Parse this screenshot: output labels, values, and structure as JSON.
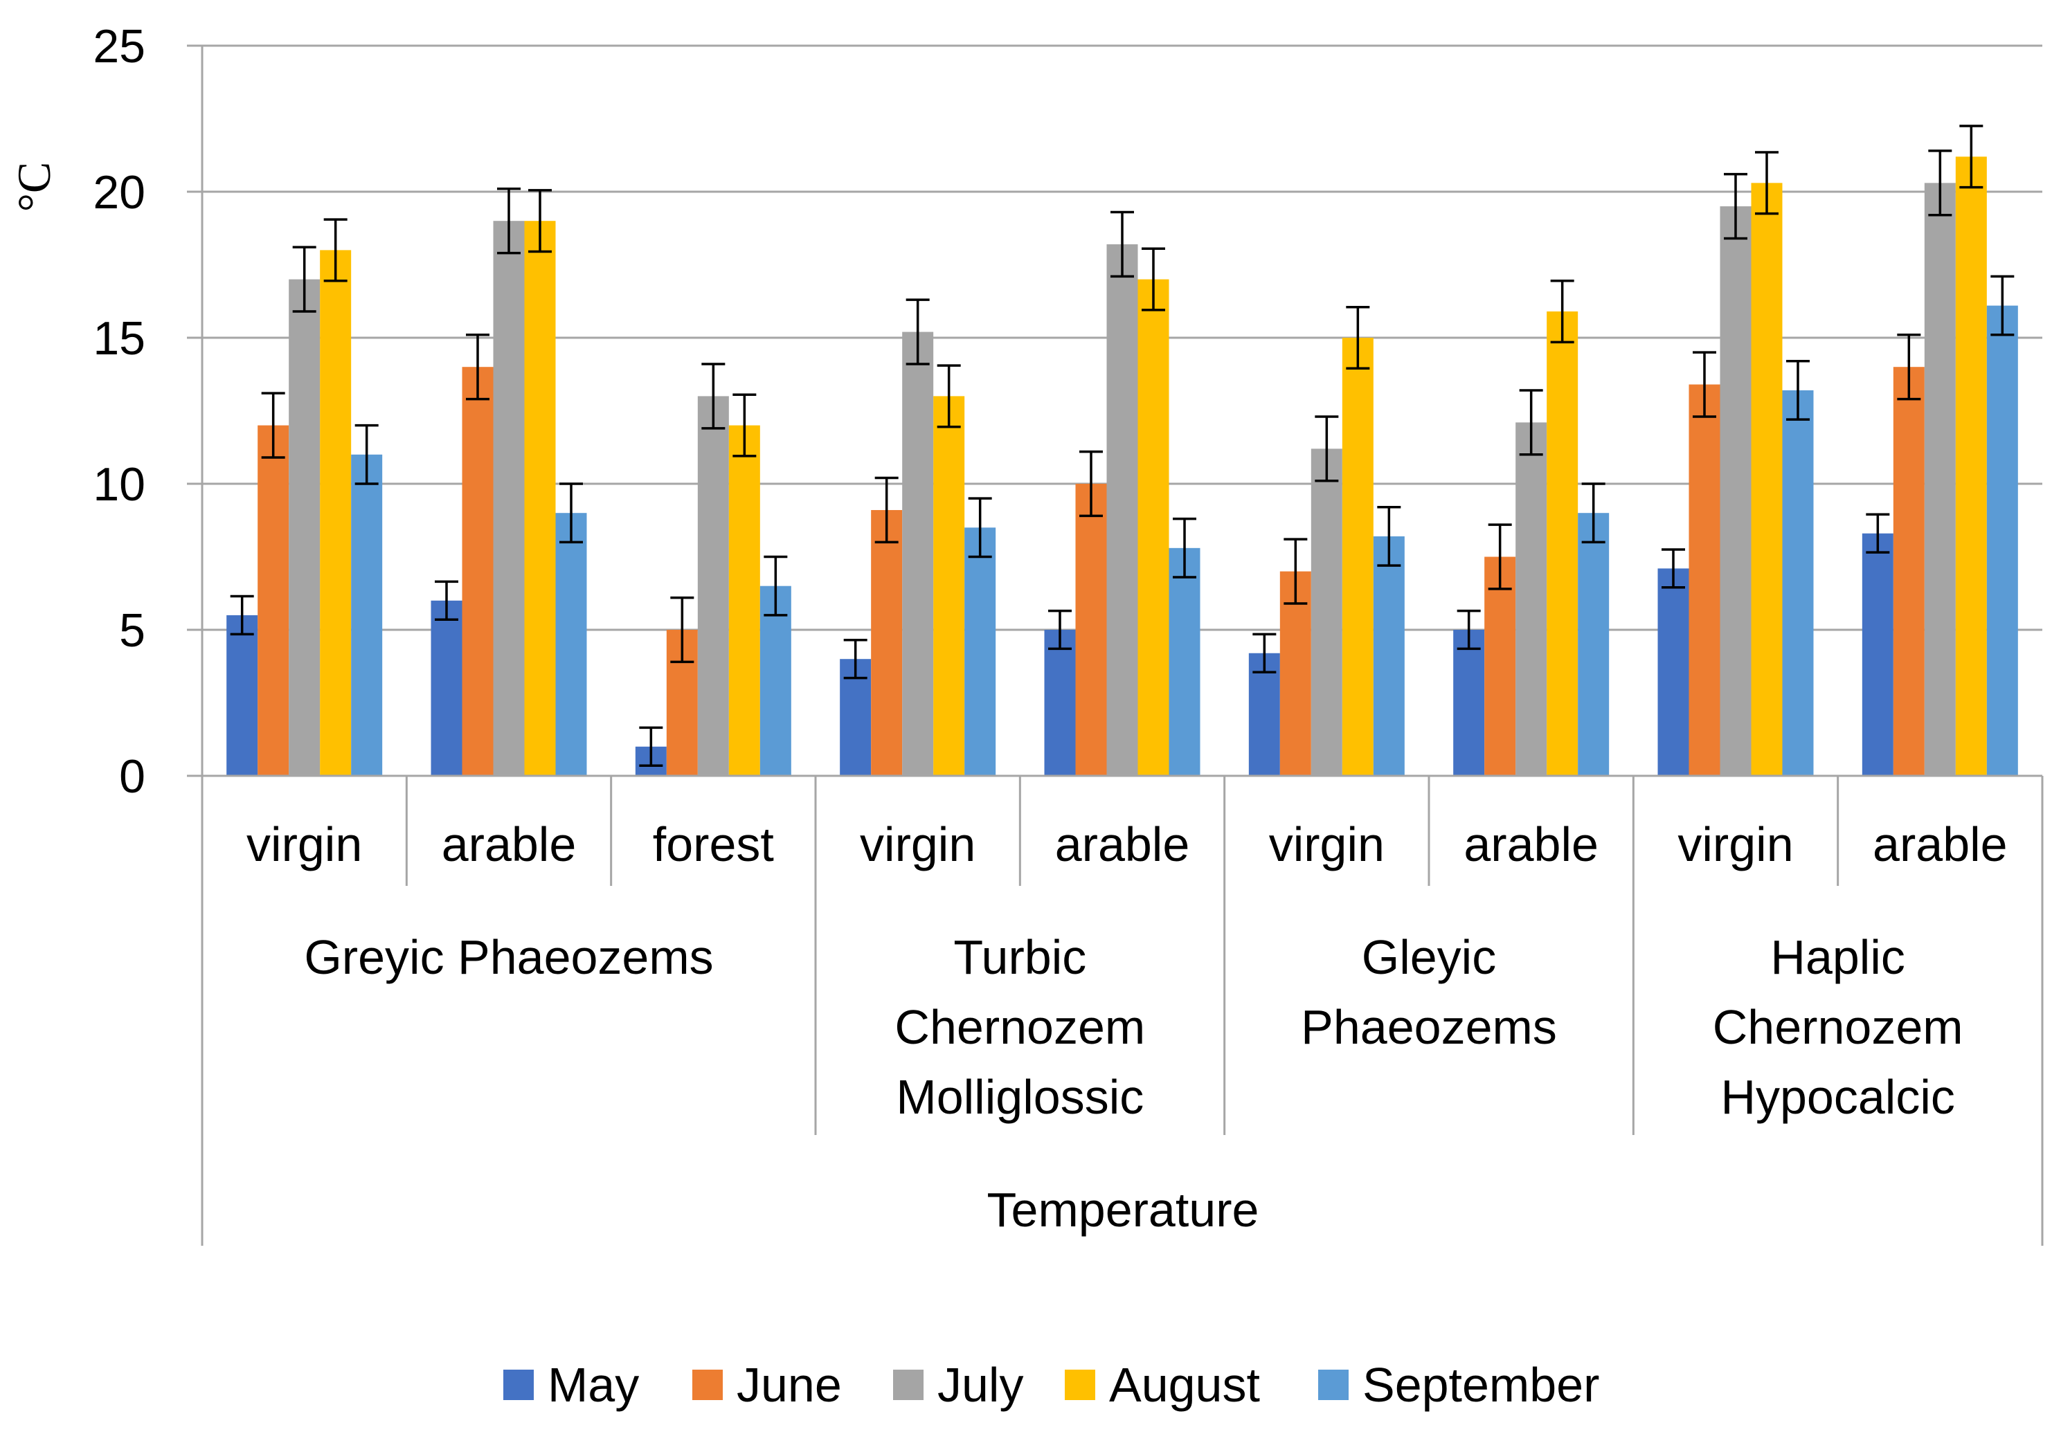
{
  "chart_data": {
    "type": "bar",
    "title": "",
    "ylabel": "°C",
    "xlabel": "Temperature",
    "ylim": [
      0,
      25
    ],
    "yticks": [
      0,
      5,
      10,
      15,
      20,
      25
    ],
    "grid": true,
    "legend_position": "bottom-center",
    "soil_groups": [
      {
        "label_lines": [
          "Greyic Phaeozems"
        ],
        "categories": [
          "virgin",
          "arable",
          "forest"
        ]
      },
      {
        "label_lines": [
          "Turbic",
          "Chernozem",
          "Molliglossic"
        ],
        "categories": [
          "virgin",
          "arable"
        ]
      },
      {
        "label_lines": [
          "Gleyic",
          "Phaeozems"
        ],
        "categories": [
          "virgin",
          "arable"
        ]
      },
      {
        "label_lines": [
          "Haplic",
          "Chernozem",
          "Hypocalcic"
        ],
        "categories": [
          "virgin",
          "arable"
        ]
      }
    ],
    "categories": [
      "virgin",
      "arable",
      "forest",
      "virgin",
      "arable",
      "virgin",
      "arable",
      "virgin",
      "arable"
    ],
    "series": [
      {
        "name": "May",
        "color": "#4472C4",
        "values": [
          5.5,
          6.0,
          1.0,
          4.0,
          5.0,
          4.2,
          5.0,
          7.1,
          8.3
        ],
        "error": [
          0.65,
          0.65,
          0.65,
          0.65,
          0.65,
          0.65,
          0.65,
          0.65,
          0.65
        ]
      },
      {
        "name": "June",
        "color": "#ED7D31",
        "values": [
          12.0,
          14.0,
          5.0,
          9.1,
          10.0,
          7.0,
          7.5,
          13.4,
          14.0
        ],
        "error": [
          1.1,
          1.1,
          1.1,
          1.1,
          1.1,
          1.1,
          1.1,
          1.1,
          1.1
        ]
      },
      {
        "name": "July",
        "color": "#A5A5A5",
        "values": [
          17.0,
          19.0,
          13.0,
          15.2,
          18.2,
          11.2,
          12.1,
          19.5,
          20.3
        ],
        "error": [
          1.1,
          1.1,
          1.1,
          1.1,
          1.1,
          1.1,
          1.1,
          1.1,
          1.1
        ]
      },
      {
        "name": "August",
        "color": "#FFC000",
        "values": [
          18.0,
          19.0,
          12.0,
          13.0,
          17.0,
          15.0,
          15.9,
          20.3,
          21.2
        ],
        "error": [
          1.05,
          1.05,
          1.05,
          1.05,
          1.05,
          1.05,
          1.05,
          1.05,
          1.05
        ]
      },
      {
        "name": "September",
        "color": "#5B9BD5",
        "values": [
          11.0,
          9.0,
          6.5,
          8.5,
          7.8,
          8.2,
          9.0,
          13.2,
          16.1
        ],
        "error": [
          1.0,
          1.0,
          1.0,
          1.0,
          1.0,
          1.0,
          1.0,
          1.0,
          1.0
        ]
      }
    ]
  }
}
